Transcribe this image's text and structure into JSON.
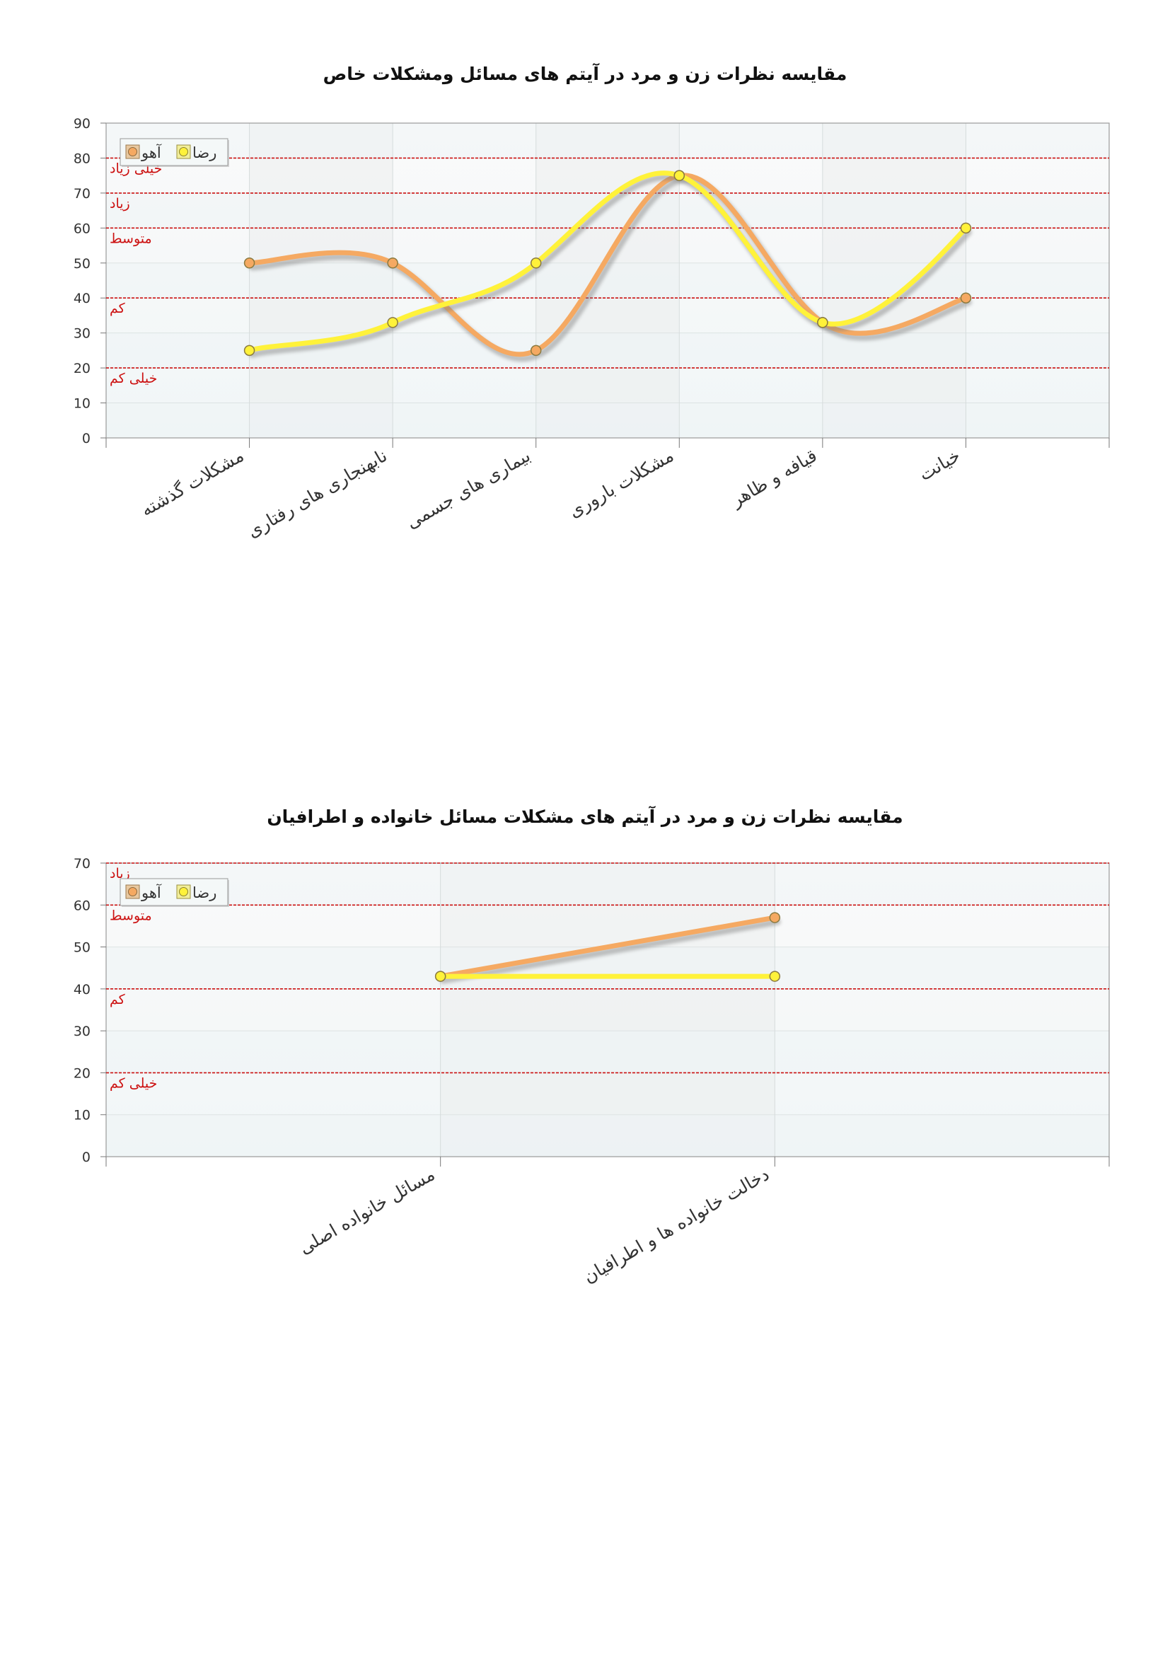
{
  "chart_data": [
    {
      "type": "line",
      "title": "مقایسه نظرات زن و مرد در آیتم های مسائل ومشکلات خاص",
      "categories": [
        "مشکلات گذشته",
        "نابهنجاری های رفتاری",
        "بیماری های جسمی",
        "مشکلات باروری",
        "قیافه و ظاهر",
        "خیانت"
      ],
      "series": [
        {
          "name": "آهو",
          "color": "#f5a962",
          "values": [
            50,
            50,
            25,
            75,
            33,
            40
          ]
        },
        {
          "name": "رضا",
          "color": "#fff23a",
          "values": [
            25,
            33,
            50,
            75,
            33,
            60
          ]
        }
      ],
      "ylim": [
        0,
        90
      ],
      "yticks": [
        0,
        10,
        20,
        30,
        40,
        50,
        60,
        70,
        80,
        90
      ],
      "reference_lines": [
        {
          "value": 20,
          "label": "خیلی کم"
        },
        {
          "value": 40,
          "label": "کم"
        },
        {
          "value": 60,
          "label": "متوسط"
        },
        {
          "value": 70,
          "label": "زیاد"
        },
        {
          "value": 80,
          "label": "خیلی زیاد"
        }
      ],
      "smooth": true,
      "grid": true,
      "legend": "top-left"
    },
    {
      "type": "line",
      "title": "مقایسه نظرات زن و مرد در آیتم های مشکلات مسائل خانواده و اطرافیان",
      "categories": [
        "مسائل خانواده اصلی",
        "دخالت خانواده ها و اطرافیان"
      ],
      "series": [
        {
          "name": "آهو",
          "color": "#f5a962",
          "values": [
            43,
            57
          ]
        },
        {
          "name": "رضا",
          "color": "#fff23a",
          "values": [
            43,
            43
          ]
        }
      ],
      "ylim": [
        0,
        70
      ],
      "yticks": [
        0,
        10,
        20,
        30,
        40,
        50,
        60,
        70
      ],
      "reference_lines": [
        {
          "value": 20,
          "label": "خیلی کم"
        },
        {
          "value": 40,
          "label": "کم"
        },
        {
          "value": 60,
          "label": "متوسط"
        },
        {
          "value": 70,
          "label": "زیاد"
        }
      ],
      "smooth": false,
      "grid": true,
      "legend": "top-left"
    }
  ]
}
